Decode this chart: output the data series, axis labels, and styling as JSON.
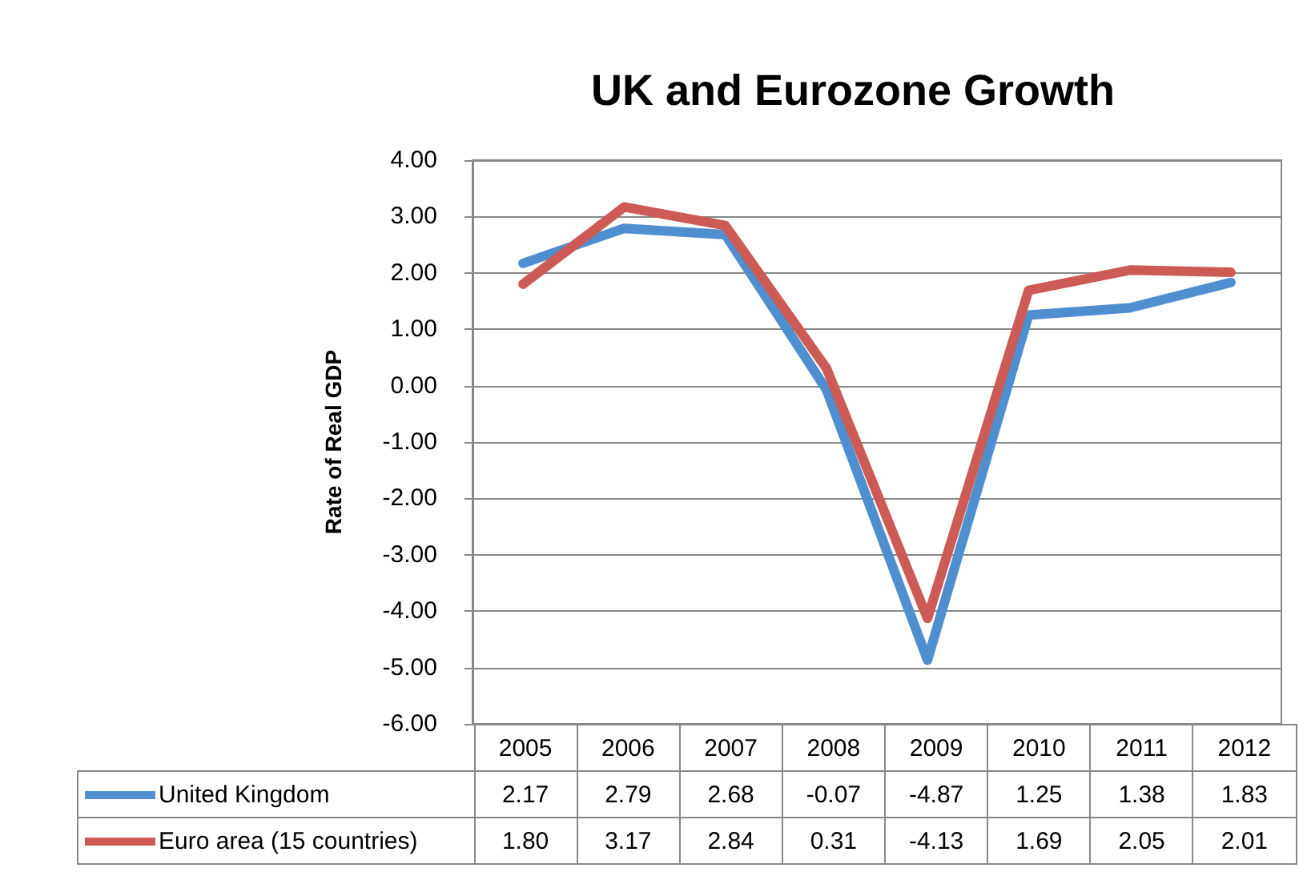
{
  "chart_data": {
    "type": "line",
    "title": "UK and Eurozone Growth",
    "ylabel": "Rate of Real GDP",
    "categories": [
      "2005",
      "2006",
      "2007",
      "2008",
      "2009",
      "2010",
      "2011",
      "2012"
    ],
    "series": [
      {
        "name": "United Kingdom",
        "color": "#4f8fcf",
        "values": [
          2.17,
          2.79,
          2.68,
          -0.07,
          -4.87,
          1.25,
          1.38,
          1.83
        ],
        "value_labels": [
          "2.17",
          "2.79",
          "2.68",
          "-0.07",
          "-4.87",
          "1.25",
          "1.38",
          "1.83"
        ]
      },
      {
        "name": "Euro area (15 countries)",
        "color": "#cc5a55",
        "values": [
          1.8,
          3.17,
          2.84,
          0.31,
          -4.13,
          1.69,
          2.05,
          2.01
        ],
        "value_labels": [
          "1.80",
          "3.17",
          "2.84",
          "0.31",
          "-4.13",
          "1.69",
          "2.05",
          "2.01"
        ]
      }
    ],
    "ylim": [
      -6,
      4
    ],
    "yticks": [
      {
        "value": -6,
        "label": "-6.00"
      },
      {
        "value": -5,
        "label": "-5.00"
      },
      {
        "value": -4,
        "label": "-4.00"
      },
      {
        "value": -3,
        "label": "-3.00"
      },
      {
        "value": -2,
        "label": "-2.00"
      },
      {
        "value": -1,
        "label": "-1.00"
      },
      {
        "value": 0,
        "label": "0.00"
      },
      {
        "value": 1,
        "label": "1.00"
      },
      {
        "value": 2,
        "label": "2.00"
      },
      {
        "value": 3,
        "label": "3.00"
      },
      {
        "value": 4,
        "label": "4.00"
      }
    ],
    "grid": "y",
    "legend": "bottom",
    "marker": "none",
    "line_style": "solid"
  }
}
